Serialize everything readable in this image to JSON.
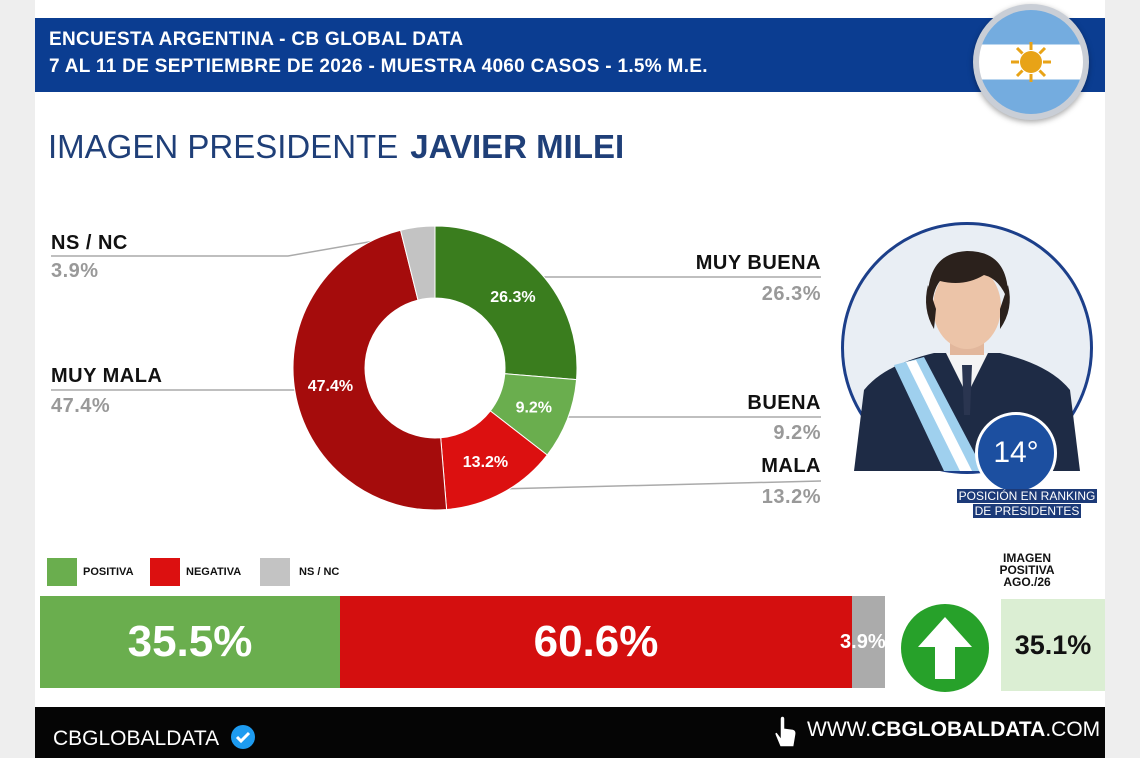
{
  "header": {
    "line1": "ENCUESTA ARGENTINA - CB GLOBAL DATA",
    "line2": "7 AL 11 DE SEPTIEMBRE DE 2026 - MUESTRA 4060 CASOS - 1.5% M.E."
  },
  "title": {
    "light": "IMAGEN PRESIDENTE",
    "bold": "JAVIER MILEI"
  },
  "chart_data": {
    "type": "pie",
    "donut": true,
    "slices": [
      {
        "label": "MUY BUENA",
        "value": 26.3,
        "display": "26.3%",
        "color": "#3a7d1e"
      },
      {
        "label": "BUENA",
        "value": 9.2,
        "display": "9.2%",
        "color": "#6aae4e"
      },
      {
        "label": "MALA",
        "value": 13.2,
        "display": "13.2%",
        "color": "#dc1010"
      },
      {
        "label": "MUY MALA",
        "value": 47.4,
        "display": "47.4%",
        "color": "#a50c0c"
      },
      {
        "label": "NS / NC",
        "value": 3.9,
        "display": "3.9%",
        "color": "#c3c3c3"
      }
    ]
  },
  "ranking": {
    "position": "14°",
    "caption_line1": "POSICIÓN EN RANKING",
    "caption_line2": "DE PRESIDENTES"
  },
  "legend": [
    {
      "label": "POSITIVA",
      "color": "#6aae4e"
    },
    {
      "label": "NEGATIVA",
      "color": "#dc1010"
    },
    {
      "label": "NS / NC",
      "color": "#c3c3c3"
    }
  ],
  "summary_bar": [
    {
      "label": "POSITIVA",
      "value": 35.5,
      "display": "35.5%",
      "color": "#6aae4e"
    },
    {
      "label": "NEGATIVA",
      "value": 60.6,
      "display": "60.6%",
      "color": "#d40f0f"
    },
    {
      "label": "NS / NC",
      "value": 3.9,
      "display": "3.9%",
      "color": "#ababab"
    }
  ],
  "previous": {
    "label_line1": "IMAGEN",
    "label_line2": "POSITIVA",
    "label_line3": "AGO./26",
    "value": "35.1%",
    "trend": "up"
  },
  "footer": {
    "brand": "CBGLOBALDATA",
    "website_prefix": "WWW.",
    "website_bold": "CBGLOBALDATA",
    "website_suffix": ".COM"
  }
}
